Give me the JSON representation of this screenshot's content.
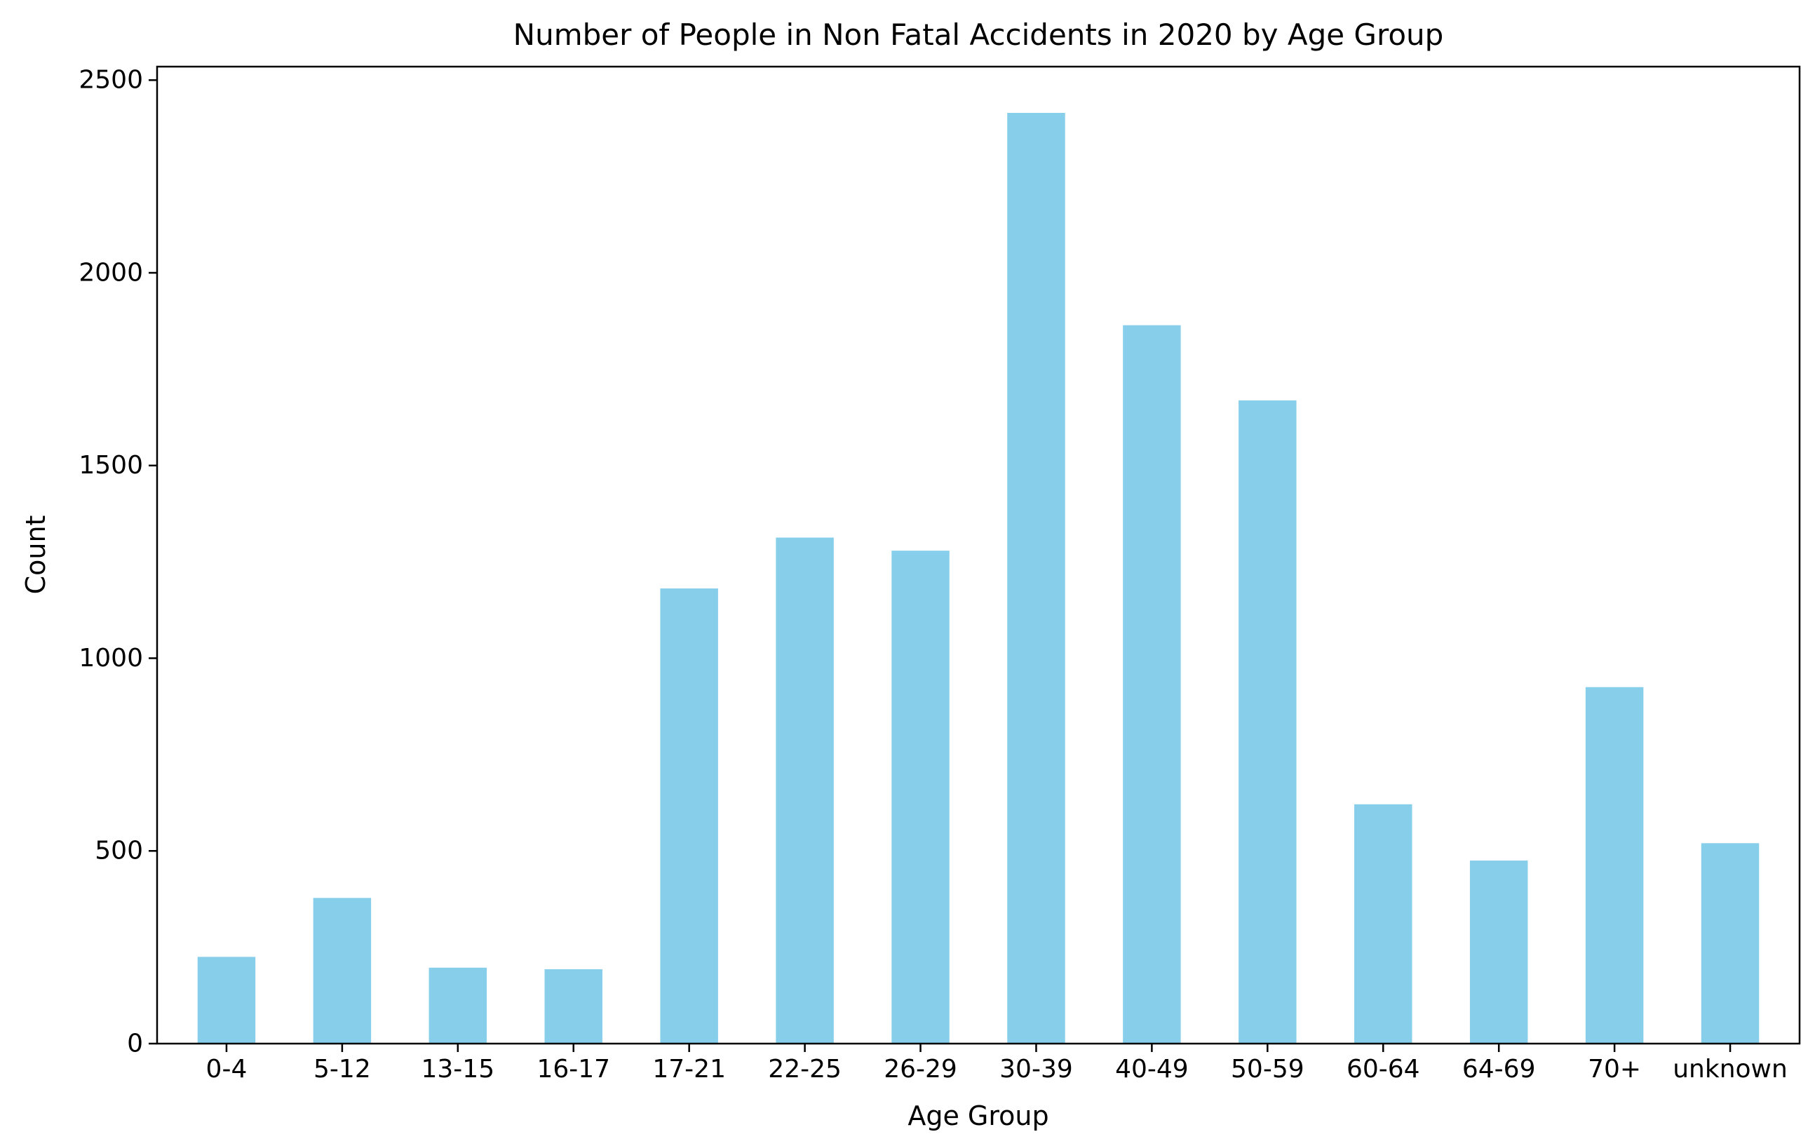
{
  "chart_data": {
    "type": "bar",
    "title": "Number of People in Non Fatal Accidents in 2020 by Age Group",
    "xlabel": "Age Group",
    "ylabel": "Count",
    "categories": [
      "0-4",
      "5-12",
      "13-15",
      "16-17",
      "17-21",
      "22-25",
      "26-29",
      "30-39",
      "40-49",
      "50-59",
      "60-64",
      "64-69",
      "70+",
      "unknown"
    ],
    "values": [
      225,
      378,
      197,
      193,
      1181,
      1313,
      1279,
      2415,
      1864,
      1669,
      621,
      475,
      925,
      520
    ],
    "ylim": [
      0,
      2535
    ],
    "yticks": [
      0,
      500,
      1000,
      1500,
      2000,
      2500
    ],
    "grid": false,
    "bar_color": "#87ceeb"
  }
}
